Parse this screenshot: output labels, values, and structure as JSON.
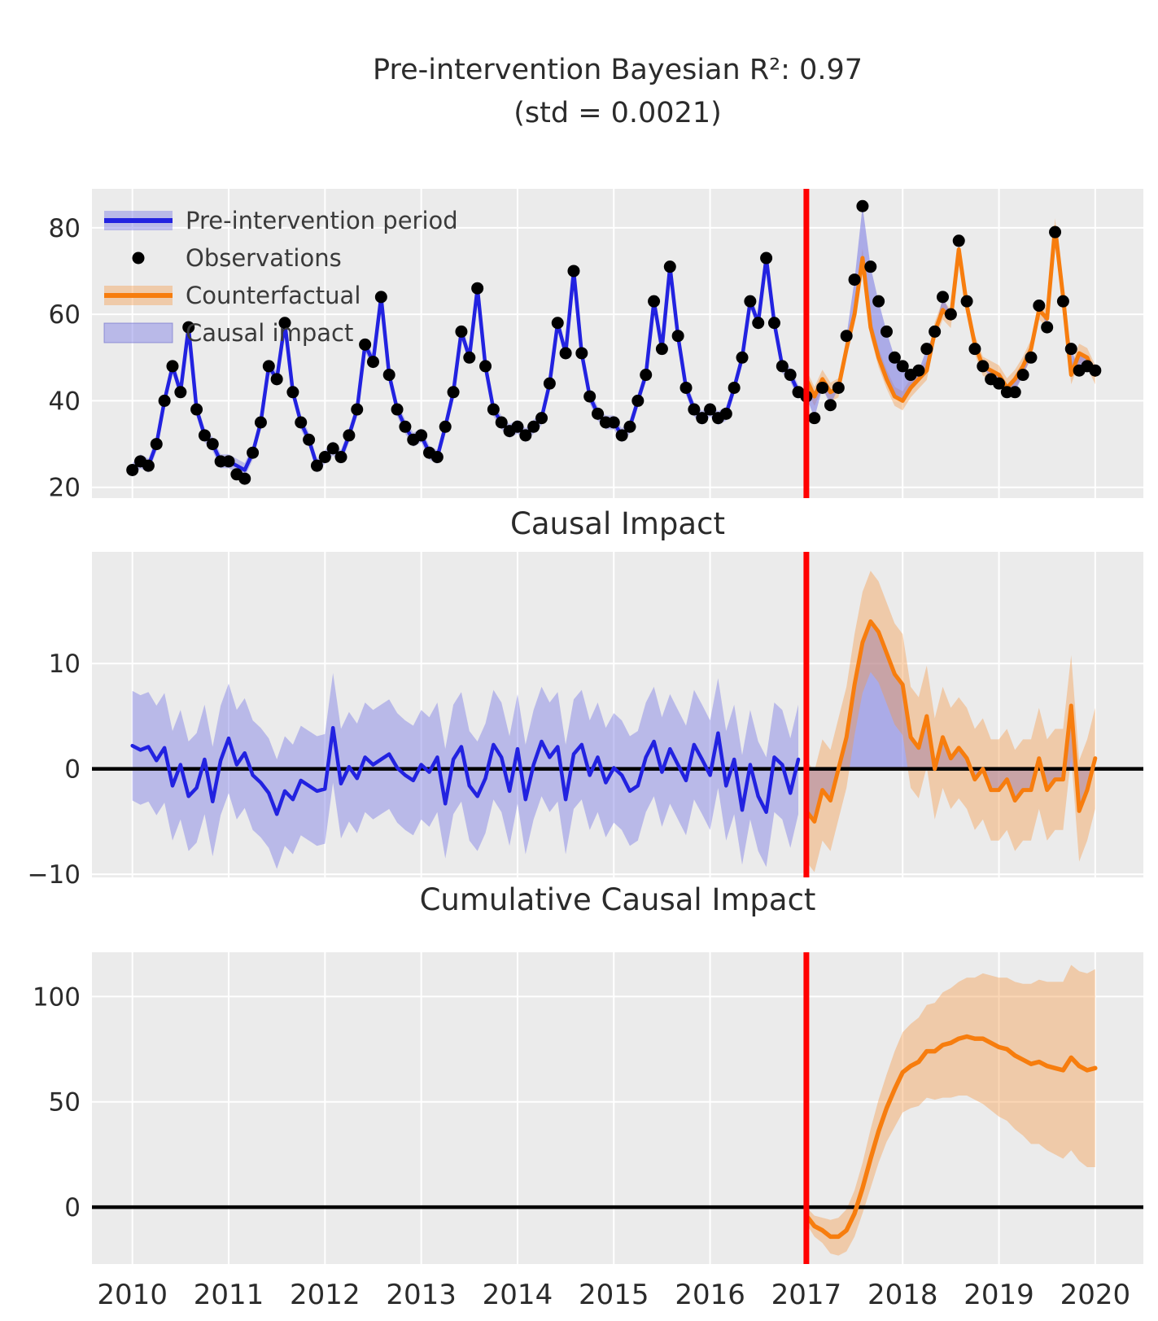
{
  "figure": {
    "title_line1": "Pre-intervention Bayesian R²: 0.97",
    "title_line2": "(std = 0.0021)",
    "xlim": [
      2009.58,
      2020.5
    ],
    "intervention_x": 2017,
    "xticks": {
      "values": [
        2010,
        2011,
        2012,
        2013,
        2014,
        2015,
        2016,
        2017,
        2018,
        2019,
        2020
      ],
      "labels": [
        "2010",
        "2011",
        "2012",
        "2013",
        "2014",
        "2015",
        "2016",
        "2017",
        "2018",
        "2019",
        "2020"
      ]
    },
    "colors": {
      "axes_bg": "#ebebeb",
      "grid": "#ffffff",
      "blue": "#2222e0",
      "blue_band": "rgba(125,125,228,0.45)",
      "impact_fill": "rgba(118,118,228,0.55)",
      "orange": "#f77d0e",
      "orange_band": "rgba(246,152,70,0.40)",
      "red": "#ff0000",
      "dots": "#000000",
      "zero_line": "#000000",
      "text": "#2b2b2b"
    },
    "legend": {
      "items": [
        {
          "swatch": "band-line-blue",
          "label": "Pre-intervention period"
        },
        {
          "swatch": "dot",
          "label": "Observations"
        },
        {
          "swatch": "band-line-orange",
          "label": "Counterfactual"
        },
        {
          "swatch": "rect-blue",
          "label": "Causal impact"
        }
      ]
    }
  },
  "chart_data": [
    {
      "type": "line",
      "panel": "observed-vs-counterfactual",
      "title": "Pre-intervention Bayesian R²: 0.97 (std = 0.0021)",
      "x_start_year": 2010,
      "x_step_months": 1,
      "intervention_index": 84,
      "ylim": [
        17.5,
        89
      ],
      "yticks": {
        "values": [
          20,
          40,
          60,
          80
        ],
        "labels": [
          "20",
          "40",
          "60",
          "80"
        ]
      },
      "observations": [
        24,
        26,
        25,
        30,
        40,
        48,
        42,
        57,
        38,
        32,
        30,
        26,
        26,
        23,
        22,
        28,
        35,
        48,
        45,
        58,
        42,
        35,
        31,
        25,
        27,
        29,
        27,
        32,
        38,
        53,
        49,
        64,
        46,
        38,
        34,
        31,
        32,
        28,
        27,
        34,
        42,
        56,
        50,
        66,
        48,
        38,
        35,
        33,
        34,
        32,
        34,
        36,
        44,
        58,
        51,
        70,
        51,
        41,
        37,
        35,
        35,
        32,
        34,
        40,
        46,
        63,
        52,
        71,
        55,
        43,
        38,
        36,
        38,
        36,
        37,
        43,
        50,
        63,
        58,
        73,
        58,
        48,
        46,
        42,
        41,
        36,
        43,
        39,
        43,
        55,
        68,
        85,
        71,
        63,
        56,
        50,
        48,
        46,
        47,
        52,
        56,
        64,
        60,
        77,
        63,
        52,
        48,
        45,
        44,
        42,
        42,
        46,
        50,
        62,
        57,
        79,
        63,
        52,
        47,
        48,
        47
      ],
      "model": [
        24,
        26,
        25,
        30,
        40,
        48,
        42,
        57,
        38,
        32,
        30,
        26,
        26,
        25,
        24,
        28,
        35,
        48,
        45,
        58,
        42,
        35,
        31,
        25,
        27,
        29,
        27,
        32,
        38,
        53,
        49,
        64,
        46,
        38,
        34,
        31,
        32,
        28,
        27,
        34,
        42,
        56,
        50,
        66,
        48,
        38,
        35,
        33,
        34,
        32,
        34,
        36,
        44,
        58,
        51,
        70,
        51,
        41,
        37,
        35,
        35,
        32,
        34,
        40,
        46,
        63,
        52,
        71,
        55,
        43,
        38,
        36,
        38,
        36,
        37,
        43,
        50,
        63,
        58,
        73,
        58,
        48,
        46,
        42,
        45,
        41,
        45,
        42,
        43,
        52,
        60,
        73,
        57,
        50,
        45,
        41,
        40,
        43,
        45,
        47,
        56,
        61,
        59,
        75,
        62,
        53,
        48,
        47,
        46,
        43,
        45,
        48,
        52,
        61,
        59,
        80,
        64,
        46,
        51,
        50,
        46
      ],
      "pre_band_halfwidth": 1.6,
      "post_band_halfwidth": 2.2
    },
    {
      "type": "line",
      "panel": "pointwise-impact",
      "title": "Causal Impact",
      "ylim": [
        -10.3,
        20.6
      ],
      "yticks": {
        "values": [
          -10,
          0,
          10
        ],
        "labels": [
          "−10",
          "0",
          "10"
        ]
      },
      "zero_line": 0,
      "pre": [
        2.2,
        1.8,
        2.1,
        0.8,
        2.0,
        -1.6,
        0.4,
        -2.6,
        -1.8,
        0.9,
        -3.1,
        0.8,
        2.9,
        0.4,
        1.5,
        -0.6,
        -1.3,
        -2.3,
        -4.3,
        -2.1,
        -2.9,
        -1.1,
        -1.6,
        -2.1,
        -1.9,
        3.9,
        -1.4,
        0.2,
        -0.9,
        1.1,
        0.4,
        0.9,
        1.4,
        0.1,
        -0.6,
        -1.1,
        0.4,
        -0.3,
        1.1,
        -3.3,
        0.9,
        2.1,
        -1.6,
        -2.6,
        -0.9,
        2.3,
        1.1,
        -2.1,
        1.9,
        -2.9,
        0.4,
        2.6,
        1.1,
        2.1,
        -2.9,
        1.4,
        2.3,
        -0.6,
        1.1,
        -1.3,
        0.1,
        -0.6,
        -2.1,
        -1.6,
        1.1,
        2.6,
        -0.3,
        1.9,
        0.4,
        -1.1,
        2.3,
        0.9,
        -0.6,
        3.4,
        -1.6,
        0.9,
        -3.9,
        0.4,
        -2.6,
        -4.1,
        1.1,
        0.4,
        -2.3,
        0.9
      ],
      "post": [
        -4,
        -5,
        -2,
        -3,
        0,
        3,
        8,
        12,
        14,
        13,
        11,
        9,
        8,
        3,
        2,
        5,
        0,
        3,
        1,
        2,
        1,
        -1,
        0,
        -2,
        -2,
        -1,
        -3,
        -2,
        -2,
        1,
        -2,
        -1,
        -1,
        6,
        -4,
        -2,
        1
      ],
      "pre_band_halfwidth": 5.2,
      "post_band_halfwidth": 4.8
    },
    {
      "type": "line",
      "panel": "cumulative-impact",
      "title": "Cumulative Causal Impact",
      "ylim": [
        -27,
        121
      ],
      "yticks": {
        "values": [
          0,
          50,
          100
        ],
        "labels": [
          "0",
          "50",
          "100"
        ]
      },
      "zero_line": 0,
      "start_index": 84,
      "values": [
        -4,
        -9,
        -11,
        -14,
        -14,
        -11,
        -3,
        9,
        23,
        36,
        47,
        56,
        64,
        67,
        69,
        74,
        74,
        77,
        78,
        80,
        81,
        80,
        80,
        78,
        76,
        75,
        72,
        70,
        68,
        69,
        67,
        66,
        65,
        71,
        67,
        65,
        66
      ],
      "band_halfwidth": [
        4,
        5,
        6,
        8,
        9,
        10,
        11,
        12,
        14,
        15,
        16,
        18,
        19,
        20,
        21,
        22,
        23,
        25,
        26,
        27,
        28,
        29,
        31,
        32,
        33,
        34,
        35,
        36,
        38,
        39,
        40,
        41,
        42,
        44,
        45,
        46,
        47
      ]
    }
  ]
}
